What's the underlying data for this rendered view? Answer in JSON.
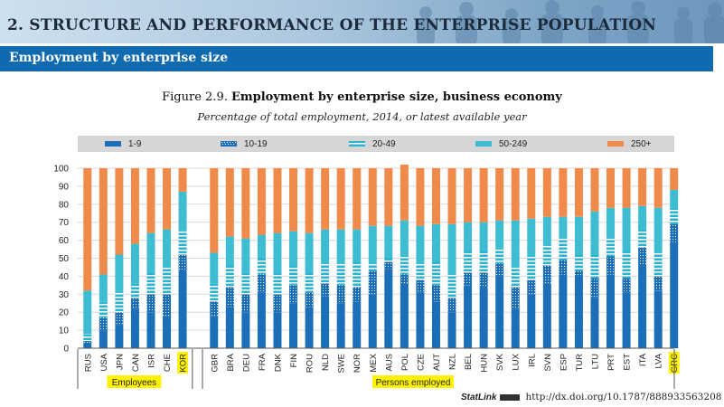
{
  "header": {
    "banner_title": "2. STRUCTURE AND PERFORMANCE OF THE ENTERPRISE POPULATION",
    "section_title": "Employment by enterprise size"
  },
  "figure": {
    "label": "Figure 2.9.",
    "title": "Employment by enterprise size, business economy",
    "subtitle": "Percentage of total employment, 2014, or latest available year"
  },
  "colors": {
    "s1": "#1a6fb8",
    "s2": "#1a6fb8",
    "s3": "#2db2d0",
    "s4": "#3dbcd2",
    "s5": "#f08a4b",
    "highlight": "#fff200",
    "section_bar": "#0f6ab0"
  },
  "chart_data": {
    "type": "bar",
    "stacked": true,
    "ylim": [
      0,
      100
    ],
    "yticks": [
      0,
      10,
      20,
      30,
      40,
      50,
      60,
      70,
      80,
      90,
      100
    ],
    "legend": [
      "1-9",
      "10-19",
      "20-49",
      "50-249",
      "250+"
    ],
    "legend_position": "top",
    "groups": [
      {
        "label": "Employees",
        "categories": [
          "RUS",
          "USA",
          "JPN",
          "CAN",
          "ISR",
          "CHE",
          "KOR"
        ]
      },
      {
        "label": "Persons employed",
        "categories": [
          "GBR",
          "BRA",
          "DEU",
          "FRA",
          "DNK",
          "FIN",
          "ROU",
          "NLD",
          "SWE",
          "NOR",
          "MEX",
          "AUS",
          "POL",
          "CZE",
          "AUT",
          "NZL",
          "BEL",
          "HUN",
          "SVK",
          "LUX",
          "IRL",
          "SVN",
          "ESP",
          "TUR",
          "LTU",
          "PRT",
          "EST",
          "ITA",
          "LVA",
          "GRC"
        ]
      }
    ],
    "categories": [
      "RUS",
      "USA",
      "JPN",
      "CAN",
      "ISR",
      "CHE",
      "KOR",
      "GBR",
      "BRA",
      "DEU",
      "FRA",
      "DNK",
      "FIN",
      "ROU",
      "NLD",
      "SWE",
      "NOR",
      "MEX",
      "AUS",
      "POL",
      "CZE",
      "AUT",
      "NZL",
      "BEL",
      "HUN",
      "SVK",
      "LUX",
      "IRL",
      "SVN",
      "ESP",
      "TUR",
      "LTU",
      "PRT",
      "EST",
      "ITA",
      "LVA",
      "GRC"
    ],
    "highlighted": [
      "KOR",
      "GRC"
    ],
    "series": [
      {
        "name": "1-9",
        "values": [
          3,
          10,
          13,
          22,
          20,
          18,
          43,
          18,
          23,
          20,
          31,
          20,
          25,
          23,
          29,
          25,
          26,
          30,
          44,
          36,
          31,
          26,
          20,
          35,
          34,
          40,
          22,
          30,
          36,
          41,
          40,
          28,
          41,
          31,
          46,
          32,
          59
        ]
      },
      {
        "name": "10-19",
        "values": [
          1,
          7,
          7,
          6,
          10,
          12,
          9,
          8,
          11,
          10,
          10,
          10,
          10,
          8,
          7,
          10,
          8,
          13,
          4,
          5,
          7,
          9,
          8,
          7,
          8,
          7,
          12,
          8,
          10,
          8,
          3,
          11,
          10,
          8,
          10,
          8,
          10
        ]
      },
      {
        "name": "20-49",
        "values": [
          4,
          9,
          11,
          8,
          12,
          15,
          13,
          10,
          12,
          12,
          9,
          12,
          11,
          11,
          11,
          12,
          14,
          4,
          2,
          10,
          9,
          13,
          13,
          12,
          12,
          8,
          11,
          13,
          11,
          12,
          9,
          13,
          10,
          15,
          10,
          13,
          9
        ]
      },
      {
        "name": "50-249",
        "values": [
          24,
          15,
          21,
          22,
          22,
          21,
          22,
          17,
          16,
          19,
          13,
          22,
          19,
          22,
          19,
          19,
          18,
          21,
          18,
          20,
          21,
          21,
          28,
          16,
          16,
          16,
          26,
          21,
          16,
          12,
          21,
          24,
          17,
          24,
          13,
          25,
          10
        ]
      },
      {
        "name": "250+",
        "values": [
          68,
          59,
          48,
          42,
          36,
          34,
          13,
          47,
          38,
          39,
          37,
          36,
          35,
          36,
          34,
          34,
          34,
          32,
          32,
          31,
          32,
          31,
          31,
          30,
          30,
          29,
          29,
          28,
          27,
          27,
          27,
          24,
          22,
          22,
          21,
          22,
          12
        ]
      }
    ]
  },
  "footer": {
    "statlink_brand": "StatLink",
    "statlink_url": "http://dx.doi.org/10.1787/888933563208"
  }
}
